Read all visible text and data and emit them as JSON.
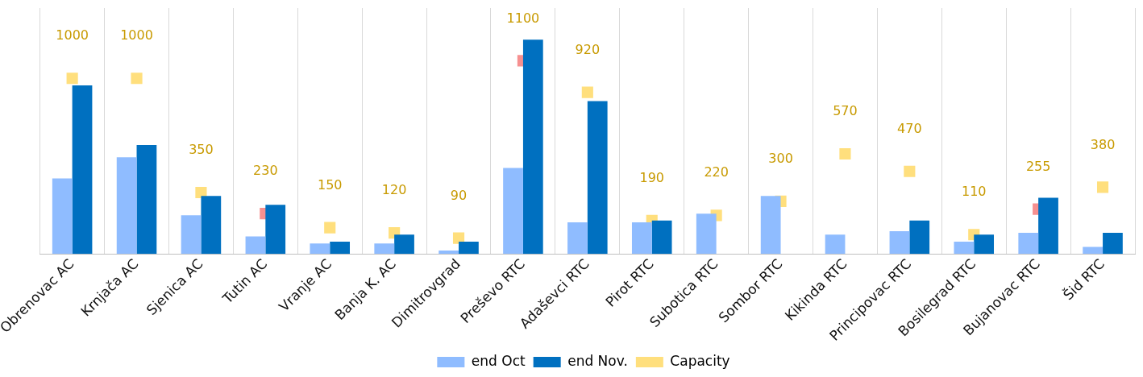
{
  "chart_data": {
    "type": "bar",
    "categories": [
      "Obrenovac AC",
      "Krnjača AC",
      "Sjenica AC",
      "Tutin AC",
      "Vranje AC",
      "Banja K. AC",
      "Dimitrovgrad",
      "Preševo RTC",
      "Adaševci RTC",
      "Pirot RTC",
      "Subotica RTC",
      "Sombor RTC",
      "Kikinda RTC",
      "Principovac RTC",
      "Bosilegrad RTC",
      "Bujanovac RTC",
      "Šid RTC"
    ],
    "series": [
      {
        "name": "end Oct",
        "color": "#8fbcff",
        "values": [
          430,
          550,
          220,
          100,
          60,
          60,
          20,
          490,
          180,
          180,
          230,
          330,
          110,
          130,
          70,
          120,
          40
        ]
      },
      {
        "name": "end Nov.",
        "color": "#0070c0",
        "values": [
          960,
          620,
          330,
          280,
          70,
          110,
          70,
          1220,
          870,
          190,
          0,
          0,
          0,
          190,
          110,
          320,
          120
        ]
      },
      {
        "name": "Capacity",
        "type": "scatter",
        "color": "#ffc000",
        "colors": [
          "#ffd966",
          "#ffd966",
          "#ffd966",
          "#f47c7c",
          "#ffd966",
          "#ffd966",
          "#ffd966",
          "#f47c7c",
          "#ffd966",
          "#ffd966",
          "#ffd966",
          "#ffd966",
          "#ffd966",
          "#ffd966",
          "#ffd966",
          "#f47c7c",
          "#ffd966"
        ],
        "values": [
          1000,
          1000,
          350,
          230,
          150,
          120,
          90,
          1100,
          920,
          190,
          220,
          300,
          570,
          470,
          110,
          255,
          380
        ],
        "data_labels": true,
        "marker": "square"
      }
    ],
    "ylim": [
      0,
      1400
    ],
    "tick_labels": "x",
    "grid": "x",
    "legend": "bottom"
  }
}
